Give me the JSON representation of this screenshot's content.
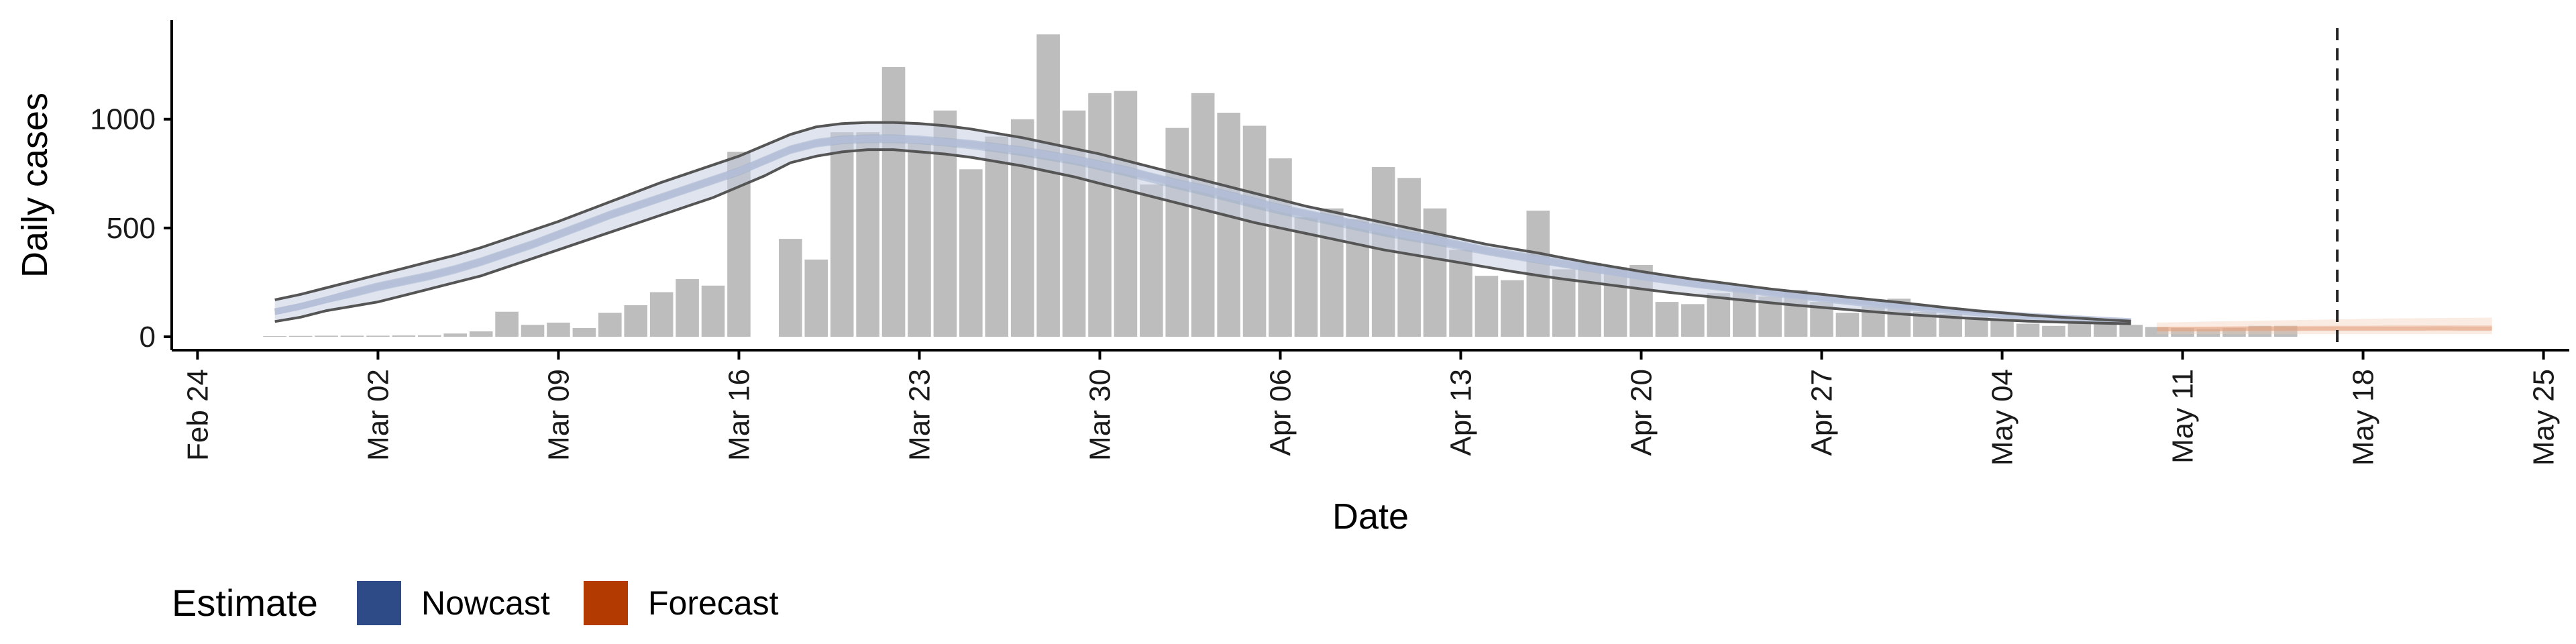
{
  "chart_data": {
    "type": "bar",
    "xlabel": "Date",
    "ylabel": "Daily cases",
    "ylim": [
      0,
      1430
    ],
    "xlim": [
      "2020-02-23",
      "2020-05-26"
    ],
    "y_ticks": [
      0,
      500,
      1000
    ],
    "x_ticks": [
      {
        "date": "2020-02-24",
        "label": "Feb 24"
      },
      {
        "date": "2020-03-02",
        "label": "Mar 02"
      },
      {
        "date": "2020-03-09",
        "label": "Mar 09"
      },
      {
        "date": "2020-03-16",
        "label": "Mar 16"
      },
      {
        "date": "2020-03-23",
        "label": "Mar 23"
      },
      {
        "date": "2020-03-30",
        "label": "Mar 30"
      },
      {
        "date": "2020-04-06",
        "label": "Apr 06"
      },
      {
        "date": "2020-04-13",
        "label": "Apr 13"
      },
      {
        "date": "2020-04-20",
        "label": "Apr 20"
      },
      {
        "date": "2020-04-27",
        "label": "Apr 27"
      },
      {
        "date": "2020-05-04",
        "label": "May 04"
      },
      {
        "date": "2020-05-11",
        "label": "May 11"
      },
      {
        "date": "2020-05-18",
        "label": "May 18"
      },
      {
        "date": "2020-05-25",
        "label": "May 25"
      }
    ],
    "grid": false,
    "legend_position": "bottom-left",
    "legend": {
      "title": "Estimate",
      "items": [
        {
          "label": "Nowcast",
          "color": "#2e4a87"
        },
        {
          "label": "Forecast",
          "color": "#b33a00"
        }
      ]
    },
    "bar_color": "#bdbdbd",
    "cutoff_date": "2020-05-17",
    "observed": {
      "start_date": "2020-02-27",
      "values": [
        3,
        4,
        5,
        5,
        5,
        6,
        7,
        15,
        25,
        115,
        55,
        65,
        40,
        110,
        145,
        205,
        265,
        235,
        850,
        0,
        450,
        355,
        940,
        940,
        1240,
        890,
        1040,
        770,
        920,
        1000,
        1390,
        1040,
        1120,
        1130,
        700,
        960,
        1120,
        1030,
        970,
        820,
        550,
        590,
        540,
        780,
        730,
        590,
        400,
        280,
        260,
        580,
        310,
        340,
        320,
        330,
        160,
        150,
        200,
        225,
        185,
        215,
        160,
        110,
        140,
        175,
        115,
        105,
        90,
        80,
        60,
        50,
        70,
        80,
        55,
        45,
        40,
        35,
        40,
        50,
        50
      ]
    },
    "nowcast": {
      "start_date": "2020-02-27",
      "median": [
        115,
        140,
        170,
        200,
        230,
        255,
        280,
        310,
        345,
        385,
        425,
        470,
        515,
        560,
        600,
        640,
        680,
        720,
        760,
        810,
        860,
        890,
        905,
        910,
        910,
        905,
        895,
        885,
        870,
        855,
        835,
        815,
        790,
        765,
        735,
        705,
        680,
        650,
        620,
        590,
        565,
        540,
        515,
        490,
        465,
        445,
        420,
        395,
        375,
        355,
        335,
        315,
        295,
        275,
        258,
        242,
        228,
        215,
        200,
        188,
        175,
        162,
        150,
        140,
        130,
        120,
        110,
        102,
        95,
        88,
        82,
        76,
        70
      ],
      "lower_90": [
        70,
        90,
        120,
        140,
        160,
        190,
        220,
        250,
        280,
        320,
        360,
        400,
        440,
        480,
        520,
        560,
        600,
        640,
        690,
        740,
        800,
        830,
        850,
        860,
        860,
        850,
        840,
        825,
        805,
        785,
        760,
        735,
        705,
        675,
        645,
        615,
        585,
        555,
        525,
        500,
        475,
        450,
        425,
        400,
        380,
        360,
        340,
        320,
        300,
        282,
        265,
        250,
        235,
        220,
        205,
        192,
        180,
        168,
        156,
        145,
        135,
        125,
        115,
        105,
        97,
        90,
        83,
        77,
        72,
        68,
        65,
        62,
        60
      ],
      "upper_90": [
        170,
        195,
        225,
        255,
        285,
        315,
        345,
        375,
        410,
        450,
        490,
        530,
        575,
        620,
        665,
        710,
        750,
        790,
        830,
        880,
        930,
        965,
        980,
        985,
        985,
        980,
        970,
        955,
        935,
        915,
        890,
        865,
        840,
        810,
        780,
        750,
        720,
        690,
        660,
        630,
        600,
        575,
        550,
        525,
        500,
        475,
        450,
        425,
        405,
        385,
        362,
        340,
        320,
        300,
        282,
        265,
        250,
        235,
        220,
        207,
        195,
        182,
        170,
        158,
        145,
        132,
        120,
        110,
        100,
        92,
        85,
        78,
        72
      ],
      "lower_50": [
        100,
        125,
        155,
        180,
        210,
        235,
        260,
        290,
        325,
        365,
        405,
        450,
        495,
        540,
        580,
        620,
        660,
        700,
        740,
        790,
        840,
        870,
        885,
        890,
        890,
        885,
        875,
        862,
        847,
        830,
        810,
        790,
        765,
        738,
        708,
        678,
        650,
        620,
        590,
        562,
        537,
        512,
        487,
        462,
        440,
        420,
        398,
        375,
        355,
        336,
        317,
        298,
        280,
        262,
        245,
        230,
        217,
        204,
        190,
        178,
        166,
        154,
        143,
        133,
        124,
        114,
        105,
        98,
        91,
        84,
        79,
        73,
        67
      ],
      "upper_50": [
        130,
        155,
        185,
        220,
        250,
        275,
        300,
        330,
        365,
        405,
        445,
        490,
        535,
        580,
        620,
        660,
        700,
        740,
        780,
        830,
        880,
        910,
        925,
        930,
        930,
        925,
        915,
        905,
        890,
        875,
        855,
        835,
        810,
        785,
        755,
        725,
        700,
        670,
        640,
        610,
        585,
        560,
        535,
        510,
        485,
        465,
        440,
        415,
        395,
        375,
        355,
        335,
        315,
        295,
        275,
        258,
        243,
        228,
        213,
        200,
        187,
        174,
        162,
        150,
        139,
        128,
        118,
        108,
        100,
        92,
        86,
        80,
        74
      ]
    },
    "forecast": {
      "start_date": "2020-05-10",
      "median": [
        35,
        35,
        35,
        36,
        37,
        37,
        38,
        38,
        38,
        38,
        38,
        39,
        38,
        38
      ],
      "lower_90": [
        12,
        12,
        12,
        12,
        12,
        12,
        12,
        12,
        12,
        12,
        12,
        12,
        12,
        12
      ],
      "upper_90": [
        65,
        67,
        70,
        72,
        74,
        76,
        78,
        80,
        82,
        84,
        85,
        86,
        87,
        88
      ],
      "lower_50": [
        25,
        25,
        25,
        26,
        26,
        26,
        27,
        27,
        27,
        27,
        27,
        27,
        27,
        27
      ],
      "upper_50": [
        45,
        46,
        47,
        48,
        49,
        50,
        50,
        51,
        51,
        52,
        52,
        53,
        53,
        53
      ]
    }
  }
}
